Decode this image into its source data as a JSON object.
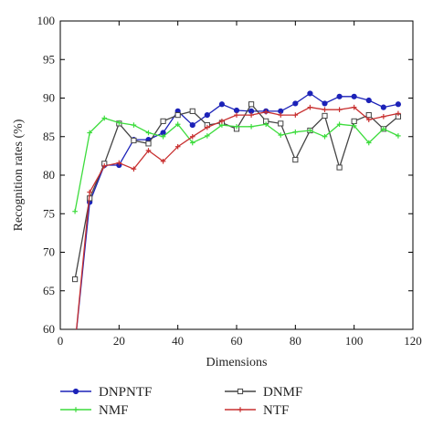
{
  "chart_data": {
    "type": "line",
    "xlabel": "Dimensions",
    "ylabel": "Recognition rates (%)",
    "xlim": [
      0,
      120
    ],
    "ylim": [
      60,
      100
    ],
    "xticks": [
      "0",
      "20",
      "40",
      "60",
      "80",
      "100",
      "120"
    ],
    "yticks": [
      "60",
      "65",
      "70",
      "75",
      "80",
      "85",
      "90",
      "95",
      "100"
    ],
    "grid": false,
    "legend_position": "bottom",
    "x": [
      5,
      10,
      15,
      20,
      25,
      30,
      35,
      40,
      45,
      50,
      55,
      60,
      65,
      70,
      75,
      80,
      85,
      90,
      95,
      100,
      105,
      110,
      115
    ],
    "series": [
      {
        "name": "DNPNTF",
        "color": "#1c22b8",
        "marker": "circle",
        "values": [
          58.0,
          76.5,
          81.3,
          81.3,
          84.6,
          84.6,
          85.5,
          88.3,
          86.5,
          87.8,
          89.2,
          88.4,
          88.3,
          88.3,
          88.3,
          89.3,
          90.6,
          89.3,
          90.2,
          90.2,
          89.7,
          88.8,
          89.2
        ]
      },
      {
        "name": "DNMF",
        "color": "#444444",
        "marker": "square",
        "values": [
          66.5,
          77.0,
          81.5,
          86.7,
          84.5,
          84.1,
          87.0,
          87.8,
          88.3,
          86.5,
          86.8,
          86.0,
          89.2,
          87.0,
          86.7,
          82.0,
          85.8,
          87.7,
          81.0,
          87.0,
          87.8,
          86.0,
          87.6
        ]
      },
      {
        "name": "NMF",
        "color": "#3ddc3d",
        "marker": "plus",
        "values": [
          75.3,
          85.5,
          87.4,
          86.8,
          86.5,
          85.5,
          85.0,
          86.6,
          84.2,
          85.1,
          86.5,
          86.3,
          86.3,
          86.6,
          85.2,
          85.6,
          85.8,
          85.0,
          86.6,
          86.4,
          84.2,
          86.0,
          85.1
        ]
      },
      {
        "name": "NTF",
        "color": "#c83030",
        "marker": "plus",
        "values": [
          58.0,
          77.8,
          81.2,
          81.6,
          80.8,
          83.2,
          81.8,
          83.7,
          85.0,
          86.2,
          87.0,
          87.8,
          87.8,
          88.2,
          87.8,
          87.8,
          88.8,
          88.5,
          88.5,
          88.8,
          87.2,
          87.6,
          88.0
        ]
      }
    ]
  }
}
